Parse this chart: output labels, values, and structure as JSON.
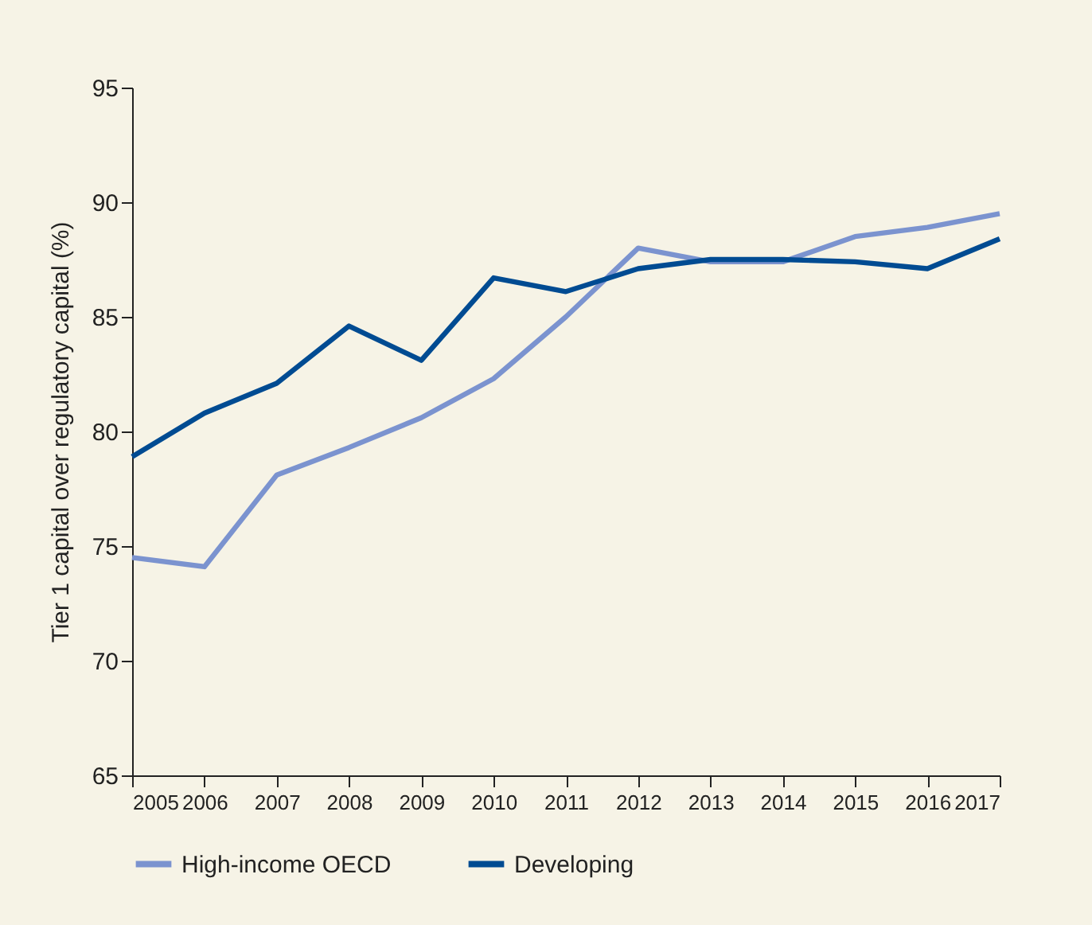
{
  "chart_data": {
    "type": "line",
    "ylabel": "Tier 1 capital over regulatory capital (%)",
    "x": [
      2005,
      2006,
      2007,
      2008,
      2009,
      2010,
      2011,
      2012,
      2013,
      2014,
      2015,
      2016,
      2017
    ],
    "series": [
      {
        "name": "High-income OECD",
        "color": "#7b93cf",
        "values": [
          74.5,
          74.1,
          78.1,
          79.3,
          80.6,
          82.3,
          85.0,
          88.0,
          87.4,
          87.4,
          88.5,
          88.9,
          89.5
        ]
      },
      {
        "name": "Developing",
        "color": "#004b92",
        "values": [
          78.9,
          80.8,
          82.1,
          84.6,
          83.1,
          86.7,
          86.1,
          87.1,
          87.5,
          87.5,
          87.4,
          87.1,
          88.4
        ]
      }
    ],
    "xlim": [
      2005,
      2017
    ],
    "xticks": [
      2005,
      2006,
      2007,
      2008,
      2009,
      2010,
      2011,
      2012,
      2013,
      2014,
      2015,
      2016,
      2017
    ],
    "ylim": [
      65,
      95
    ],
    "yticks": [
      65,
      70,
      75,
      80,
      85,
      90,
      95
    ],
    "grid": false,
    "legend": "bottom",
    "marker": "none",
    "line_style": "solid"
  }
}
